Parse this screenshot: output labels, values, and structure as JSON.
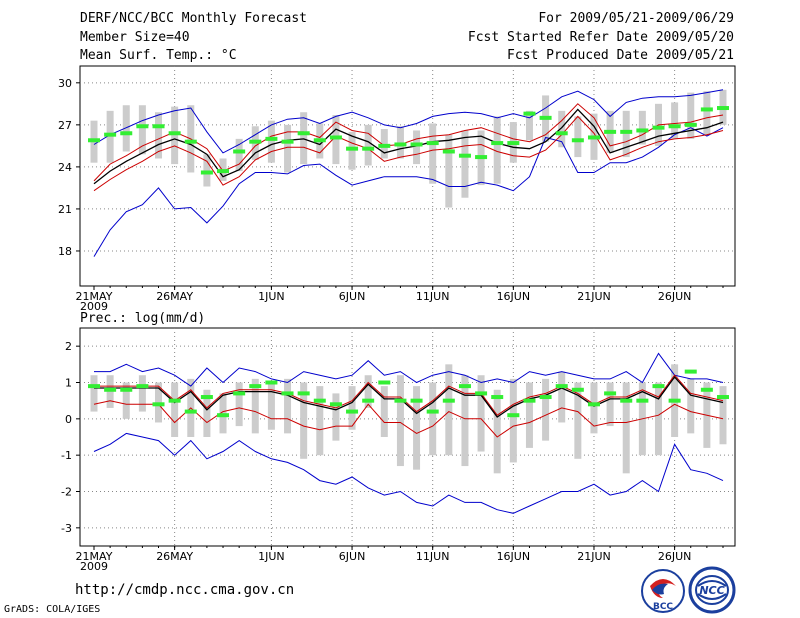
{
  "header": {
    "title": "DERF/NCC/BCC Monthly Forecast",
    "member_size": "Member Size=40",
    "variable": "Mean Surf. Temp.: °C",
    "period": "For 2009/05/21-2009/06/29",
    "start_ref": "Fcst Started Refer Date 2009/05/20",
    "produced": "Fcst Produced Date 2009/05/21"
  },
  "footer": {
    "url": "http://cmdp.ncc.cma.gov.cn",
    "credit": "GrADS: COLA/IGES",
    "logo_left_text": "BCC",
    "logo_right_text": "NCC"
  },
  "colors": {
    "envelope": "#0000cc",
    "spread": "#cc0000",
    "mean": "#000000",
    "marker": "#33ee33",
    "box": "#cccccc",
    "grid": "#888888"
  },
  "chart_data": [
    {
      "type": "box-line",
      "title": "Mean Surf. Temp.: °C",
      "x_tick_labels": [
        "21MAY",
        "26MAY",
        "1JUN",
        "6JUN",
        "11JUN",
        "16JUN",
        "21JUN",
        "26JUN"
      ],
      "x_tick_days": [
        1,
        6,
        12,
        17,
        22,
        27,
        32,
        37
      ],
      "year_label": "2009",
      "ylim": [
        15.5,
        31.2
      ],
      "y_ticks": [
        18,
        21,
        24,
        27,
        30
      ],
      "days": 40,
      "series": [
        {
          "name": "max",
          "values": [
            25.6,
            26.3,
            26.8,
            27.3,
            27.7,
            28.0,
            28.2,
            26.5,
            25.0,
            25.6,
            26.3,
            27.0,
            27.4,
            27.5,
            27.1,
            27.6,
            27.9,
            27.5,
            27.0,
            26.8,
            27.1,
            27.6,
            27.8,
            27.9,
            27.8,
            27.5,
            27.8,
            27.5,
            28.2,
            29.0,
            29.4,
            28.8,
            27.6,
            28.6,
            28.9,
            29.0,
            29.0,
            29.1,
            29.3,
            29.5
          ]
        },
        {
          "name": "upper",
          "values": [
            23.0,
            24.2,
            24.8,
            25.5,
            26.0,
            26.5,
            26.0,
            25.3,
            23.7,
            24.2,
            25.5,
            26.2,
            26.5,
            26.5,
            26.1,
            27.2,
            26.6,
            26.4,
            25.5,
            25.6,
            26.0,
            26.2,
            26.3,
            26.6,
            26.8,
            26.4,
            26.0,
            25.8,
            26.3,
            27.3,
            28.5,
            27.5,
            25.5,
            25.8,
            26.3,
            27.0,
            27.1,
            27.2,
            27.5,
            27.7
          ]
        },
        {
          "name": "mean",
          "values": [
            22.8,
            23.7,
            24.4,
            25.0,
            25.6,
            26.0,
            25.6,
            24.9,
            23.3,
            23.8,
            25.0,
            25.6,
            25.9,
            26.0,
            25.6,
            26.7,
            26.2,
            25.8,
            25.0,
            25.3,
            25.5,
            25.8,
            25.9,
            26.1,
            26.2,
            25.7,
            25.4,
            25.3,
            25.8,
            26.8,
            28.1,
            26.9,
            25.0,
            25.4,
            25.8,
            26.2,
            26.4,
            26.6,
            26.8,
            27.2
          ]
        },
        {
          "name": "lower",
          "values": [
            22.3,
            23.1,
            23.8,
            24.4,
            25.1,
            25.5,
            25.0,
            24.4,
            22.7,
            23.3,
            24.5,
            25.1,
            25.4,
            25.4,
            25.0,
            26.2,
            25.7,
            25.3,
            24.4,
            24.7,
            24.9,
            25.2,
            25.3,
            25.5,
            25.6,
            25.1,
            24.8,
            24.7,
            25.2,
            26.3,
            27.6,
            26.4,
            24.5,
            24.9,
            25.4,
            25.8,
            26.0,
            26.1,
            26.3,
            26.6
          ]
        },
        {
          "name": "min",
          "values": [
            17.6,
            19.5,
            20.8,
            21.3,
            22.5,
            21.0,
            21.1,
            20.0,
            21.2,
            22.8,
            23.6,
            23.6,
            23.5,
            24.1,
            24.2,
            23.4,
            22.7,
            23.0,
            23.3,
            23.3,
            23.3,
            23.1,
            22.6,
            22.6,
            22.9,
            22.7,
            22.3,
            23.3,
            26.1,
            25.8,
            23.6,
            23.6,
            24.3,
            24.3,
            24.7,
            25.4,
            26.3,
            26.8,
            26.2,
            26.8
          ]
        },
        {
          "name": "marker",
          "values": [
            25.9,
            26.3,
            26.4,
            26.9,
            26.9,
            26.4,
            25.8,
            23.6,
            23.7,
            25.1,
            25.8,
            26.0,
            25.8,
            26.4,
            25.9,
            26.1,
            25.3,
            25.3,
            25.5,
            25.6,
            25.6,
            25.7,
            25.1,
            24.8,
            24.7,
            25.7,
            25.7,
            27.8,
            27.5,
            26.4,
            25.9,
            26.1,
            26.5,
            26.5,
            26.6,
            26.8,
            26.9,
            27.0,
            28.1,
            28.2
          ]
        },
        {
          "name": "box_high",
          "values": [
            27.3,
            28.0,
            28.4,
            28.4,
            27.9,
            28.3,
            28.4,
            24.9,
            24.6,
            26.0,
            26.9,
            27.3,
            27.0,
            27.9,
            27.1,
            27.7,
            26.5,
            27.0,
            26.7,
            26.9,
            26.6,
            27.1,
            26.3,
            26.6,
            26.6,
            27.6,
            27.2,
            28.0,
            29.1,
            28.0,
            27.6,
            27.8,
            28.0,
            28.0,
            28.0,
            28.5,
            28.6,
            29.3,
            29.4,
            29.5
          ]
        },
        {
          "name": "box_low",
          "values": [
            24.3,
            24.3,
            25.1,
            24.9,
            24.6,
            24.2,
            23.6,
            22.6,
            23.0,
            23.7,
            24.5,
            24.3,
            23.6,
            24.2,
            24.6,
            24.2,
            23.8,
            24.1,
            24.6,
            24.6,
            24.2,
            22.8,
            21.1,
            21.8,
            22.7,
            22.8,
            24.3,
            25.9,
            25.8,
            25.4,
            24.7,
            24.5,
            25.0,
            24.7,
            25.6,
            25.5,
            26.0,
            26.0,
            26.3,
            27.0
          ]
        }
      ]
    },
    {
      "type": "box-line",
      "title": "Prec.: log(mm/d)",
      "x_tick_labels": [
        "21MAY",
        "26MAY",
        "1JUN",
        "6JUN",
        "11JUN",
        "16JUN",
        "21JUN",
        "26JUN"
      ],
      "x_tick_days": [
        1,
        6,
        12,
        17,
        22,
        27,
        32,
        37
      ],
      "year_label": "2009",
      "ylim": [
        -3.5,
        2.5
      ],
      "y_ticks": [
        -3,
        -2,
        -1,
        0,
        1,
        2
      ],
      "days": 40,
      "series": [
        {
          "name": "max",
          "values": [
            1.3,
            1.3,
            1.5,
            1.3,
            1.4,
            1.2,
            0.9,
            1.4,
            1.0,
            1.4,
            1.3,
            1.1,
            1.0,
            1.3,
            1.2,
            1.1,
            1.2,
            1.6,
            1.2,
            1.3,
            1.0,
            1.2,
            1.3,
            1.2,
            1.0,
            1.1,
            1.0,
            1.3,
            1.2,
            1.3,
            1.2,
            1.1,
            1.1,
            1.3,
            1.0,
            1.8,
            1.2,
            1.1,
            1.1,
            1.0
          ]
        },
        {
          "name": "upper",
          "values": [
            0.9,
            0.9,
            0.9,
            0.9,
            0.9,
            0.5,
            0.8,
            0.3,
            0.7,
            0.8,
            0.8,
            0.8,
            0.7,
            0.5,
            0.4,
            0.3,
            0.5,
            1.0,
            0.6,
            0.6,
            0.2,
            0.5,
            0.9,
            0.7,
            0.7,
            0.1,
            0.4,
            0.6,
            0.7,
            0.9,
            0.7,
            0.4,
            0.6,
            0.6,
            0.8,
            0.6,
            1.2,
            0.7,
            0.6,
            0.5
          ]
        },
        {
          "name": "mean",
          "values": [
            0.85,
            0.85,
            0.85,
            0.85,
            0.85,
            0.45,
            0.75,
            0.25,
            0.65,
            0.75,
            0.75,
            0.75,
            0.65,
            0.45,
            0.35,
            0.25,
            0.45,
            0.95,
            0.55,
            0.55,
            0.15,
            0.45,
            0.85,
            0.65,
            0.65,
            0.05,
            0.35,
            0.55,
            0.65,
            0.85,
            0.65,
            0.35,
            0.55,
            0.55,
            0.75,
            0.55,
            1.15,
            0.65,
            0.55,
            0.45
          ]
        },
        {
          "name": "lower",
          "values": [
            0.4,
            0.5,
            0.4,
            0.4,
            0.4,
            -0.1,
            0.3,
            -0.1,
            0.2,
            0.3,
            0.2,
            0.0,
            0.0,
            -0.2,
            -0.3,
            -0.2,
            -0.2,
            0.4,
            -0.1,
            -0.1,
            -0.4,
            -0.2,
            0.2,
            0.0,
            0.0,
            -0.5,
            -0.2,
            -0.1,
            0.1,
            0.3,
            0.2,
            -0.2,
            -0.1,
            -0.1,
            0.0,
            0.1,
            0.4,
            0.2,
            0.1,
            0.0
          ]
        },
        {
          "name": "min",
          "values": [
            -0.9,
            -0.7,
            -0.4,
            -0.5,
            -0.6,
            -1.0,
            -0.6,
            -1.1,
            -0.9,
            -0.6,
            -0.9,
            -1.1,
            -1.2,
            -1.4,
            -1.7,
            -1.8,
            -1.6,
            -1.9,
            -2.1,
            -2.0,
            -2.3,
            -2.4,
            -2.1,
            -2.3,
            -2.3,
            -2.5,
            -2.6,
            -2.4,
            -2.2,
            -2.0,
            -2.0,
            -1.8,
            -2.1,
            -2.0,
            -1.7,
            -2.0,
            -0.7,
            -1.4,
            -1.5,
            -1.7
          ]
        },
        {
          "name": "marker",
          "values": [
            0.9,
            0.8,
            0.8,
            0.9,
            0.4,
            0.5,
            0.2,
            0.6,
            0.1,
            0.7,
            0.9,
            1.0,
            0.7,
            0.7,
            0.5,
            0.4,
            0.2,
            0.5,
            1.0,
            0.5,
            0.5,
            0.2,
            0.5,
            0.9,
            0.7,
            0.6,
            0.1,
            0.5,
            0.6,
            0.9,
            0.8,
            0.4,
            0.7,
            0.5,
            0.5,
            0.9,
            0.5,
            1.3,
            0.8,
            0.6
          ]
        },
        {
          "name": "box_high",
          "values": [
            1.2,
            1.2,
            1.0,
            1.2,
            1.0,
            1.0,
            1.1,
            0.8,
            0.7,
            1.0,
            1.1,
            1.0,
            1.1,
            1.0,
            0.9,
            0.7,
            0.9,
            1.2,
            0.9,
            1.2,
            0.9,
            1.0,
            1.5,
            1.2,
            1.2,
            0.8,
            1.1,
            1.0,
            1.1,
            1.3,
            1.0,
            1.0,
            1.0,
            1.0,
            1.0,
            1.0,
            1.5,
            1.1,
            1.0,
            0.9
          ]
        },
        {
          "name": "box_low",
          "values": [
            0.2,
            0.3,
            0.0,
            0.2,
            -0.1,
            -0.5,
            -0.5,
            -0.5,
            -0.4,
            -0.2,
            -0.4,
            -0.3,
            -0.4,
            -1.1,
            -1.0,
            -0.6,
            -0.3,
            0.3,
            -0.5,
            -1.3,
            -1.4,
            -1.0,
            -1.0,
            -1.3,
            -0.9,
            -1.5,
            -1.2,
            -0.8,
            -0.6,
            -0.1,
            -1.1,
            -0.4,
            -0.2,
            -1.5,
            -1.0,
            -1.0,
            -0.5,
            -0.4,
            -0.8,
            -0.7
          ]
        }
      ]
    }
  ]
}
